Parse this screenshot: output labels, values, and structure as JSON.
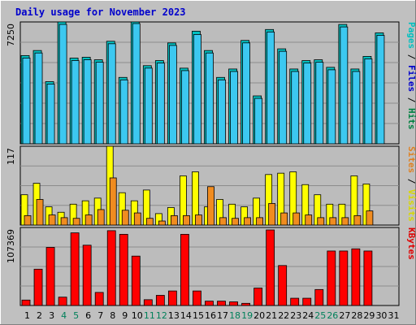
{
  "chart_data": {
    "type": "bar",
    "title": "Daily usage for November 2023",
    "categories": [
      "1",
      "2",
      "3",
      "4",
      "5",
      "6",
      "7",
      "8",
      "9",
      "10",
      "11",
      "12",
      "13",
      "14",
      "15",
      "16",
      "17",
      "18",
      "19",
      "20",
      "21",
      "22",
      "23",
      "24",
      "25",
      "26",
      "27",
      "28",
      "29",
      "30",
      "31"
    ],
    "weekend_days": [
      "4",
      "5",
      "11",
      "12",
      "18",
      "19",
      "25",
      "26"
    ],
    "panels": [
      {
        "name": "pages-files-hits",
        "ymax_label": "7250",
        "ylim": [
          0,
          7250
        ],
        "labels": [
          {
            "text": "Pages",
            "color": "#00c0c0"
          },
          {
            "text": "Files",
            "color": "#0000cc"
          },
          {
            "text": "Hits",
            "color": "#008040"
          }
        ],
        "series": [
          {
            "name": "Hits",
            "color": "#00c0c0",
            "values": [
              5250,
              5550,
              3700,
              7250,
              5100,
              5150,
              5000,
              6100,
              3950,
              7300,
              4650,
              4950,
              6000,
              4500,
              6700,
              5550,
              3950,
              4450,
              6150,
              2850,
              6800,
              5650,
              4450,
              4950,
              5000,
              4550,
              7100,
              4450,
              5200,
              6600,
              0
            ]
          },
          {
            "name": "Files",
            "color": "#3cc8f0",
            "values": [
              5200,
              5500,
              3650,
              7200,
              5050,
              5100,
              4950,
              6050,
              3900,
              7250,
              4600,
              4900,
              5950,
              4450,
              6600,
              5500,
              3900,
              4400,
              6100,
              2800,
              6750,
              5600,
              4400,
              4900,
              4950,
              4500,
              7050,
              4400,
              5150,
              6550,
              0
            ]
          },
          {
            "name": "Pages",
            "color": "#00a0b0",
            "values": [
              0,
              0,
              0,
              0,
              0,
              0,
              0,
              0,
              0,
              0,
              0,
              0,
              0,
              0,
              0,
              0,
              0,
              0,
              0,
              0,
              0,
              0,
              0,
              0,
              0,
              0,
              0,
              0,
              0,
              0,
              0
            ]
          }
        ]
      },
      {
        "name": "sites-visits",
        "ymax_label": "117",
        "ylim": [
          0,
          117
        ],
        "labels": [
          {
            "text": "Sites",
            "color": "#e08020"
          },
          {
            "text": "Visits",
            "color": "#d8d800"
          }
        ],
        "series": [
          {
            "name": "Visits",
            "color": "#ffff00",
            "values": [
              45,
              62,
              27,
              19,
              31,
              36,
              40,
              117,
              48,
              36,
              52,
              17,
              26,
              73,
              79,
              27,
              38,
              31,
              27,
              40,
              75,
              77,
              79,
              60,
              45,
              31,
              31,
              73,
              61,
              0,
              0
            ]
          },
          {
            "name": "Sites",
            "color": "#f08c20",
            "values": [
              14,
              38,
              15,
              11,
              10,
              15,
              23,
              70,
              22,
              18,
              10,
              6,
              14,
              14,
              15,
              57,
              11,
              10,
              11,
              11,
              32,
              18,
              18,
              15,
              11,
              11,
              11,
              14,
              21,
              0,
              0
            ]
          }
        ]
      },
      {
        "name": "kbytes",
        "ymax_label": "107369",
        "ylim": [
          0,
          107369
        ],
        "labels": [
          {
            "text": "KBytes",
            "color": "#e00000"
          }
        ],
        "series": [
          {
            "name": "KBytes",
            "color": "#ff0000",
            "values": [
              7500,
              50000,
              80000,
              11500,
              100000,
              83000,
              18000,
              103000,
              98000,
              68000,
              8000,
              14000,
              20000,
              98000,
              20000,
              6000,
              6000,
              5000,
              3000,
              24000,
              104000,
              55000,
              10000,
              10000,
              22000,
              75000,
              75000,
              78000,
              75000,
              0,
              0
            ]
          }
        ]
      }
    ]
  }
}
